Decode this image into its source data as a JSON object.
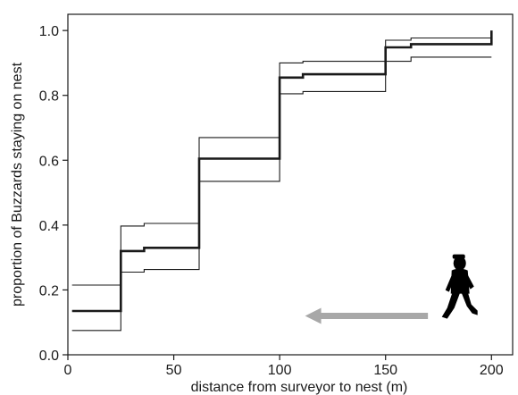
{
  "chart_data": {
    "type": "line",
    "title": "",
    "xlabel": "distance from surveyor to nest (m)",
    "ylabel": "proportion of Buzzards staying on nest",
    "xlim": [
      0,
      210
    ],
    "ylim": [
      0,
      1.05
    ],
    "grid": false,
    "legend": "none",
    "x_ticks": [
      0,
      50,
      100,
      150,
      200
    ],
    "x_tick_labels": [
      "0",
      "50",
      "100",
      "150",
      "200"
    ],
    "y_ticks": [
      0.0,
      0.2,
      0.4,
      0.6,
      0.8,
      1.0
    ],
    "y_tick_labels": [
      "0.0",
      "0.2",
      "0.4",
      "0.6",
      "0.8",
      "1.0"
    ],
    "series": [
      {
        "role": "estimate",
        "color": "#1a1a1a",
        "step": true,
        "points": [
          [
            2,
            0.135
          ],
          [
            25,
            0.135
          ],
          [
            25,
            0.32
          ],
          [
            36,
            0.32
          ],
          [
            36,
            0.33
          ],
          [
            62,
            0.33
          ],
          [
            62,
            0.605
          ],
          [
            100,
            0.605
          ],
          [
            100,
            0.855
          ],
          [
            111,
            0.855
          ],
          [
            111,
            0.865
          ],
          [
            150,
            0.865
          ],
          [
            150,
            0.948
          ],
          [
            162,
            0.948
          ],
          [
            162,
            0.958
          ],
          [
            200,
            0.958
          ],
          [
            200,
            1.0
          ]
        ]
      },
      {
        "role": "upper_bound",
        "color": "#1a1a1a",
        "step": true,
        "points": [
          [
            2,
            0.215
          ],
          [
            25,
            0.215
          ],
          [
            25,
            0.397
          ],
          [
            36,
            0.397
          ],
          [
            36,
            0.405
          ],
          [
            62,
            0.405
          ],
          [
            62,
            0.67
          ],
          [
            100,
            0.67
          ],
          [
            100,
            0.9
          ],
          [
            111,
            0.9
          ],
          [
            111,
            0.905
          ],
          [
            150,
            0.905
          ],
          [
            150,
            0.97
          ],
          [
            162,
            0.97
          ],
          [
            162,
            0.977
          ],
          [
            200,
            0.977
          ]
        ]
      },
      {
        "role": "lower_bound",
        "color": "#1a1a1a",
        "step": true,
        "points": [
          [
            2,
            0.075
          ],
          [
            25,
            0.075
          ],
          [
            25,
            0.255
          ],
          [
            36,
            0.255
          ],
          [
            36,
            0.263
          ],
          [
            62,
            0.263
          ],
          [
            62,
            0.535
          ],
          [
            100,
            0.535
          ],
          [
            100,
            0.805
          ],
          [
            111,
            0.805
          ],
          [
            111,
            0.812
          ],
          [
            150,
            0.812
          ],
          [
            150,
            0.905
          ],
          [
            162,
            0.905
          ],
          [
            162,
            0.918
          ],
          [
            200,
            0.918
          ]
        ]
      }
    ],
    "annotations": [
      {
        "type": "arrow",
        "meaning": "surveyor approaching nest",
        "color": "#a8a8a8",
        "x_from": 170,
        "x_to": 112,
        "y": 0.12
      },
      {
        "type": "silhouette",
        "icon": "walking-person-icon",
        "color": "#000000",
        "x": 185,
        "y": 0.15
      }
    ]
  }
}
